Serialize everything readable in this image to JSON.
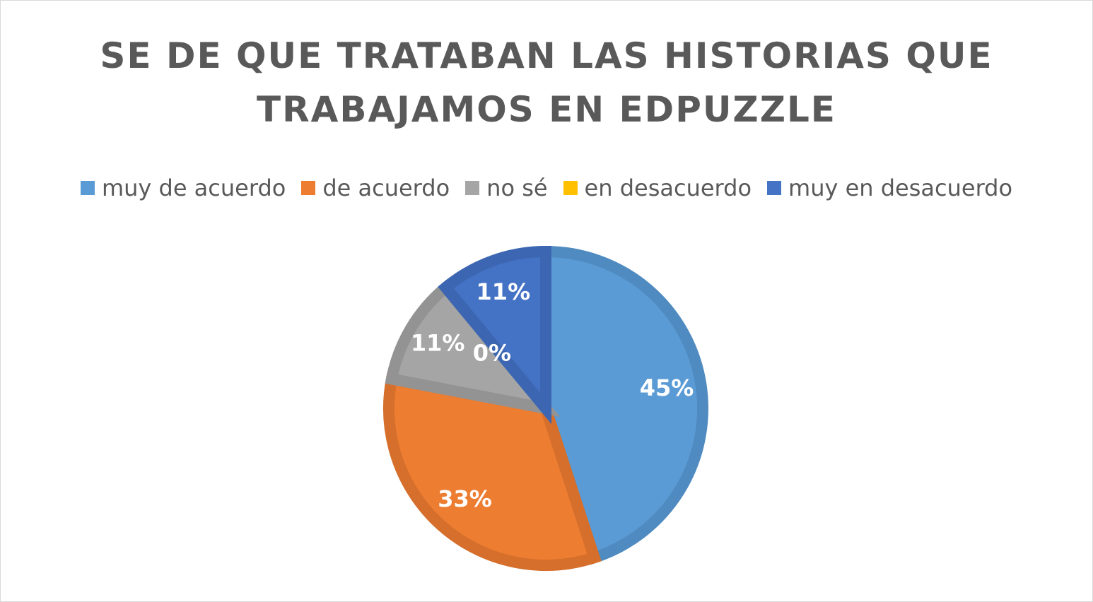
{
  "chart_data": {
    "type": "pie",
    "title": "SE DE QUE TRATABAN LAS HISTORIAS QUE TRABAJAMOS EN EDPUZZLE",
    "legend_position": "top",
    "categories": [
      "muy de acuerdo",
      "de acuerdo",
      "no sé",
      "en desacuerdo",
      "muy en desacuerdo"
    ],
    "values": [
      45,
      33,
      11,
      0,
      11
    ],
    "labels": [
      "45%",
      "33%",
      "11%",
      "0%",
      "11%"
    ],
    "colors": [
      "#5b9bd5",
      "#ed7d31",
      "#a5a5a5",
      "#ffc000",
      "#4472c4"
    ],
    "edge_colors": [
      "#4f8bc0",
      "#d56f2b",
      "#939393",
      "#e5ad00",
      "#3c66b1"
    ]
  }
}
